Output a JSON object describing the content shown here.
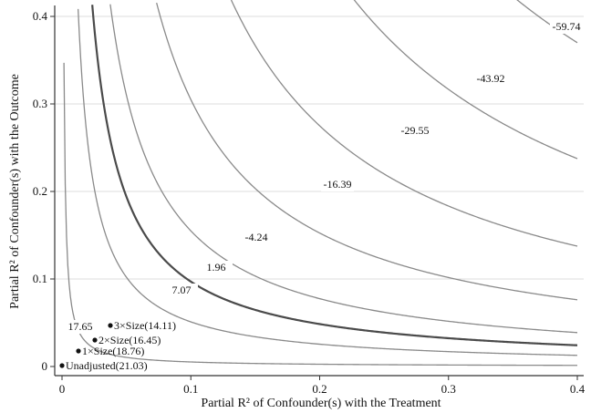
{
  "chart_data": {
    "type": "contour",
    "xlabel": "Partial R² of Confounder(s) with the Treatment",
    "ylabel": "Partial R² of Confounder(s) with the Outcome",
    "xlim": [
      0,
      0.4
    ],
    "ylim": [
      0,
      0.4
    ],
    "xticks": [
      {
        "value": 0,
        "label": "0"
      },
      {
        "value": 0.1,
        "label": "0.1"
      },
      {
        "value": 0.2,
        "label": "0.2"
      },
      {
        "value": 0.3,
        "label": "0.3"
      },
      {
        "value": 0.4,
        "label": "0.4"
      }
    ],
    "yticks": [
      {
        "value": 0,
        "label": "0"
      },
      {
        "value": 0.1,
        "label": "0.1"
      },
      {
        "value": 0.2,
        "label": "0.2"
      },
      {
        "value": 0.3,
        "label": "0.3"
      },
      {
        "value": 0.4,
        "label": "0.4"
      }
    ],
    "grid": "horizontal",
    "contours": [
      {
        "label": "17.65",
        "k": 0.00052,
        "label_at": [
          0.0,
          0.0
        ],
        "highlight": false
      },
      {
        "label": "7.07",
        "k": 0.0051,
        "label_at": [
          0.062,
          0.082
        ],
        "highlight": false
      },
      {
        "label": "1.96",
        "k": 0.0097,
        "label_at": [
          0.108,
          0.108
        ],
        "highlight": true
      },
      {
        "label": "-4.24",
        "k": 0.0155,
        "label_at": [
          0.14,
          0.142
        ],
        "highlight": false
      },
      {
        "label": "-16.39",
        "k": 0.0305,
        "label_at": [
          0.198,
          0.205
        ],
        "highlight": false
      },
      {
        "label": "-29.55",
        "k": 0.055,
        "label_at": [
          0.262,
          0.265
        ],
        "highlight": false
      },
      {
        "label": "-43.92",
        "k": 0.095,
        "label_at": [
          0.335,
          0.325
        ],
        "highlight": false
      },
      {
        "label": "-59.74",
        "k": 0.148,
        "label_at": [
          0.385,
          0.385
        ],
        "highlight": false
      }
    ],
    "points": [
      {
        "label": "Unadjusted(21.03)",
        "x": 0.0,
        "y": 0.0
      },
      {
        "label": "1×Size(18.76)",
        "x": 0.012,
        "y": 0.016
      },
      {
        "label": "2×Size(16.45)",
        "x": 0.025,
        "y": 0.03
      },
      {
        "label": "3×Size(14.11)",
        "x": 0.037,
        "y": 0.046
      }
    ],
    "colors": {
      "contour": "#8a8a8a",
      "highlight": "#4a4a4a",
      "grid": "#dcdcdc",
      "axis": "#333333"
    }
  }
}
